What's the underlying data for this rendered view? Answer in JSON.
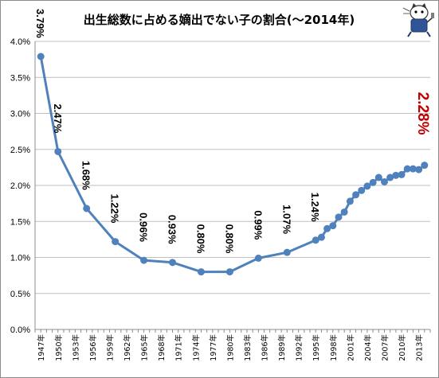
{
  "chart_data": {
    "type": "line",
    "title": "出生総数に占める嫡出でない子の割合(～2014年)",
    "xlabel": "",
    "ylabel": "",
    "ylim": [
      0,
      4.0
    ],
    "yticks": [
      "0.0%",
      "0.5%",
      "1.0%",
      "1.5%",
      "2.0%",
      "2.5%",
      "3.0%",
      "3.5%",
      "4.0%"
    ],
    "xticks": [
      "1947年",
      "1950年",
      "1953年",
      "1956年",
      "1959年",
      "1962年",
      "1965年",
      "1968年",
      "1971年",
      "1974年",
      "1977年",
      "1980年",
      "1983年",
      "1986年",
      "1989年",
      "1992年",
      "1995年",
      "1998年",
      "2001年",
      "2004年",
      "2007年",
      "2010年",
      "2013年"
    ],
    "grid": true,
    "legend": "none",
    "line_color": "#4f81bd",
    "highlight_color": "#c00000",
    "series": [
      {
        "x": [
          1947,
          1950,
          1955,
          1960,
          1965,
          1970,
          1975,
          1980,
          1985,
          1990,
          1995,
          1996,
          1997,
          1998,
          1999,
          2000,
          2001,
          2002,
          2003,
          2004,
          2005,
          2006,
          2007,
          2008,
          2009,
          2010,
          2011,
          2012,
          2013,
          2014
        ],
        "values": [
          3.79,
          2.47,
          1.68,
          1.22,
          0.96,
          0.93,
          0.8,
          0.8,
          0.99,
          1.07,
          1.24,
          1.28,
          1.4,
          1.44,
          1.56,
          1.63,
          1.78,
          1.87,
          1.93,
          1.99,
          2.04,
          2.11,
          2.05,
          2.11,
          2.14,
          2.15,
          2.23,
          2.23,
          2.22,
          2.28
        ]
      }
    ],
    "data_labels": [
      {
        "x": 1947,
        "text": "3.79%"
      },
      {
        "x": 1950,
        "text": "2.47%"
      },
      {
        "x": 1955,
        "text": "1.68%"
      },
      {
        "x": 1960,
        "text": "1.22%"
      },
      {
        "x": 1965,
        "text": "0.96%"
      },
      {
        "x": 1970,
        "text": "0.93%"
      },
      {
        "x": 1975,
        "text": "0.80%"
      },
      {
        "x": 1980,
        "text": "0.80%"
      },
      {
        "x": 1985,
        "text": "0.99%"
      },
      {
        "x": 1990,
        "text": "1.07%"
      },
      {
        "x": 1995,
        "text": "1.24%"
      },
      {
        "x": 2014,
        "text": "2.28%"
      }
    ]
  }
}
